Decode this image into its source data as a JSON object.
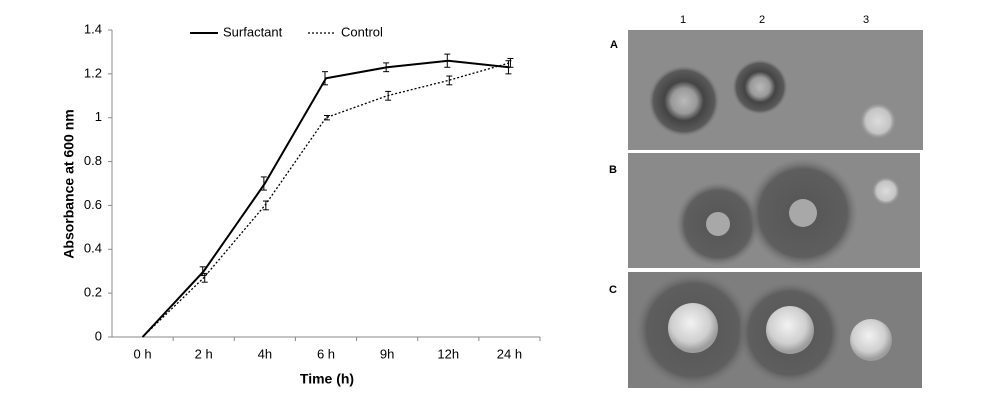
{
  "chart_data": {
    "type": "line",
    "x_label": "Time (h)",
    "y_label": "Absorbance at 600 nm",
    "categories": [
      "0 h",
      "2 h",
      "4h",
      "6 h",
      "9h",
      "12h",
      "24 h"
    ],
    "series": [
      {
        "name": "Surfactant",
        "color": "#000000",
        "line_style": "solid",
        "values": [
          0,
          0.3,
          0.7,
          1.18,
          1.23,
          1.26,
          1.23
        ],
        "errors": [
          0,
          0.02,
          0.03,
          0.03,
          0.02,
          0.03,
          0.03
        ]
      },
      {
        "name": "Control",
        "color": "#000000",
        "line_style": "dotted",
        "values": [
          0,
          0.27,
          0.6,
          1.0,
          1.1,
          1.17,
          1.25
        ],
        "errors": [
          0,
          0.02,
          0.02,
          0.01,
          0.02,
          0.02,
          0.02
        ]
      }
    ],
    "ylim": [
      0,
      1.4
    ],
    "yticks": [
      0,
      0.2,
      0.4,
      0.6,
      0.8,
      1,
      1.2,
      1.4
    ],
    "grid": false,
    "legend": "top"
  },
  "photo": {
    "columns": [
      "1",
      "2",
      "3"
    ],
    "rows": [
      "A",
      "B",
      "C"
    ]
  }
}
